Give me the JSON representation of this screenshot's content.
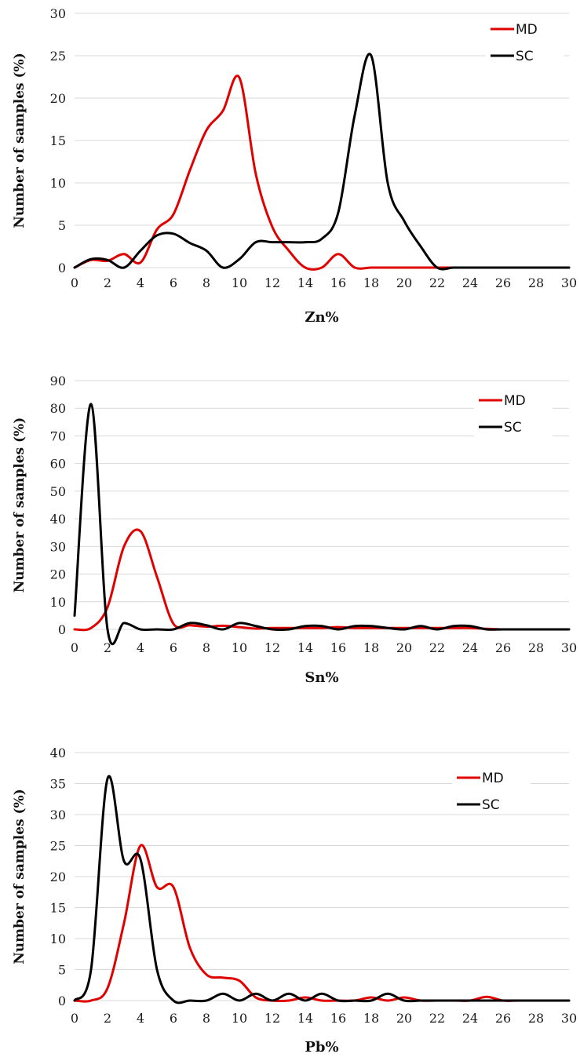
{
  "chart_data": [
    {
      "type": "line",
      "xlabel": "Zn%",
      "ylabel": "Number of samples (%)",
      "xlim": [
        0,
        30
      ],
      "ylim": [
        0,
        30
      ],
      "xticks": [
        0,
        2,
        4,
        6,
        8,
        10,
        12,
        14,
        16,
        18,
        20,
        22,
        24,
        26,
        28,
        30
      ],
      "yticks": [
        0,
        5,
        10,
        15,
        20,
        25,
        30
      ],
      "grid": "horizontal",
      "legend": "top-right",
      "series": [
        {
          "name": "MD",
          "color": "#e00000",
          "x": [
            0,
            1,
            2,
            3,
            4,
            5,
            6,
            7,
            8,
            9,
            10,
            11,
            12,
            13,
            14,
            15,
            16,
            17,
            18,
            19,
            20,
            21,
            22,
            23,
            24,
            25,
            26,
            27,
            28,
            29,
            30
          ],
          "y": [
            0,
            0.9,
            0.8,
            1.6,
            0.6,
            4.5,
            6.3,
            11.5,
            16.2,
            18.5,
            22.4,
            11,
            4.8,
            2,
            0,
            0,
            1.6,
            0,
            0,
            0,
            0,
            0,
            0,
            0,
            0,
            0,
            0,
            0,
            0,
            0,
            0
          ]
        },
        {
          "name": "SC",
          "color": "#000000",
          "x": [
            0,
            1,
            2,
            3,
            4,
            5,
            6,
            7,
            8,
            9,
            10,
            11,
            12,
            13,
            14,
            15,
            16,
            17,
            18,
            19,
            20,
            21,
            22,
            23,
            24,
            25,
            26,
            27,
            28,
            29,
            30
          ],
          "y": [
            0,
            1.0,
            0.9,
            0,
            2.0,
            3.8,
            4.0,
            2.9,
            2.0,
            0,
            1.0,
            3.0,
            3.0,
            3.0,
            3.0,
            3.4,
            6.5,
            18,
            25,
            10,
            5.5,
            2.5,
            0,
            0,
            0,
            0,
            0,
            0,
            0,
            0,
            0
          ]
        }
      ]
    },
    {
      "type": "line",
      "xlabel": "Sn%",
      "ylabel": "Number of samples (%)",
      "xlim": [
        0,
        30
      ],
      "ylim": [
        0,
        90
      ],
      "xticks": [
        0,
        2,
        4,
        6,
        8,
        10,
        12,
        14,
        16,
        18,
        20,
        22,
        24,
        26,
        28,
        30
      ],
      "yticks": [
        0,
        10,
        20,
        30,
        40,
        50,
        60,
        70,
        80,
        90
      ],
      "grid": "horizontal",
      "legend": "top-right",
      "series": [
        {
          "name": "MD",
          "color": "#e00000",
          "x": [
            0,
            1,
            2,
            3,
            4,
            5,
            6,
            7,
            8,
            9,
            10,
            11,
            12,
            13,
            14,
            15,
            16,
            17,
            18,
            19,
            20,
            21,
            22,
            23,
            24,
            25,
            26,
            27,
            28,
            29,
            30
          ],
          "y": [
            0,
            0.5,
            8,
            30,
            35.5,
            19,
            2,
            1.5,
            1,
            1.3,
            0.8,
            0.3,
            0.5,
            0.5,
            0.5,
            0.5,
            0.8,
            0.5,
            0.5,
            0.5,
            0.5,
            0.5,
            0.5,
            0.5,
            0.5,
            0.2,
            0,
            0,
            0,
            0,
            0
          ]
        },
        {
          "name": "SC",
          "color": "#000000",
          "x": [
            0,
            1,
            2,
            3,
            4,
            5,
            6,
            7,
            8,
            9,
            10,
            11,
            12,
            13,
            14,
            15,
            16,
            17,
            18,
            19,
            20,
            21,
            22,
            23,
            24,
            25,
            26,
            27,
            28,
            29,
            30
          ],
          "y": [
            5,
            81.5,
            0,
            2.3,
            0,
            0,
            0,
            2.3,
            1.5,
            0,
            2.3,
            1.2,
            0,
            0,
            1.2,
            1.2,
            0,
            1.2,
            1.2,
            0.5,
            0,
            1.2,
            0,
            1.2,
            1.2,
            0,
            0,
            0,
            0,
            0,
            0
          ]
        }
      ]
    },
    {
      "type": "line",
      "xlabel": "Pb%",
      "ylabel": "Number of samples (%)",
      "xlim": [
        0,
        30
      ],
      "ylim": [
        0,
        40
      ],
      "xticks": [
        0,
        2,
        4,
        6,
        8,
        10,
        12,
        14,
        16,
        18,
        20,
        22,
        24,
        26,
        28,
        30
      ],
      "yticks": [
        0,
        5,
        10,
        15,
        20,
        25,
        30,
        35,
        40
      ],
      "grid": "horizontal",
      "legend": "top-right",
      "series": [
        {
          "name": "MD",
          "color": "#e00000",
          "x": [
            0,
            1,
            2,
            3,
            4,
            5,
            6,
            7,
            8,
            9,
            10,
            11,
            12,
            13,
            14,
            15,
            16,
            17,
            18,
            19,
            20,
            21,
            22,
            23,
            24,
            25,
            26,
            27,
            28,
            29,
            30
          ],
          "y": [
            0,
            0,
            2,
            12.5,
            25,
            18.3,
            18.3,
            8.5,
            4.2,
            3.7,
            3.2,
            0.5,
            0,
            0,
            0.5,
            0,
            0,
            0,
            0.5,
            0,
            0.5,
            0,
            0,
            0,
            0,
            0.6,
            0,
            0,
            0,
            0,
            0
          ]
        },
        {
          "name": "SC",
          "color": "#000000",
          "x": [
            0,
            1,
            2,
            3,
            4,
            5,
            6,
            7,
            8,
            9,
            10,
            11,
            12,
            13,
            14,
            15,
            16,
            17,
            18,
            19,
            20,
            21,
            22,
            23,
            24,
            25,
            26,
            27,
            28,
            29,
            30
          ],
          "y": [
            0,
            5,
            35.8,
            22.5,
            22.8,
            5,
            0,
            0,
            0,
            1.1,
            0,
            1.1,
            0,
            1.1,
            0,
            1.1,
            0,
            0,
            0,
            1.1,
            0,
            0,
            0,
            0,
            0,
            0,
            0,
            0,
            0,
            0,
            0
          ]
        }
      ]
    }
  ]
}
